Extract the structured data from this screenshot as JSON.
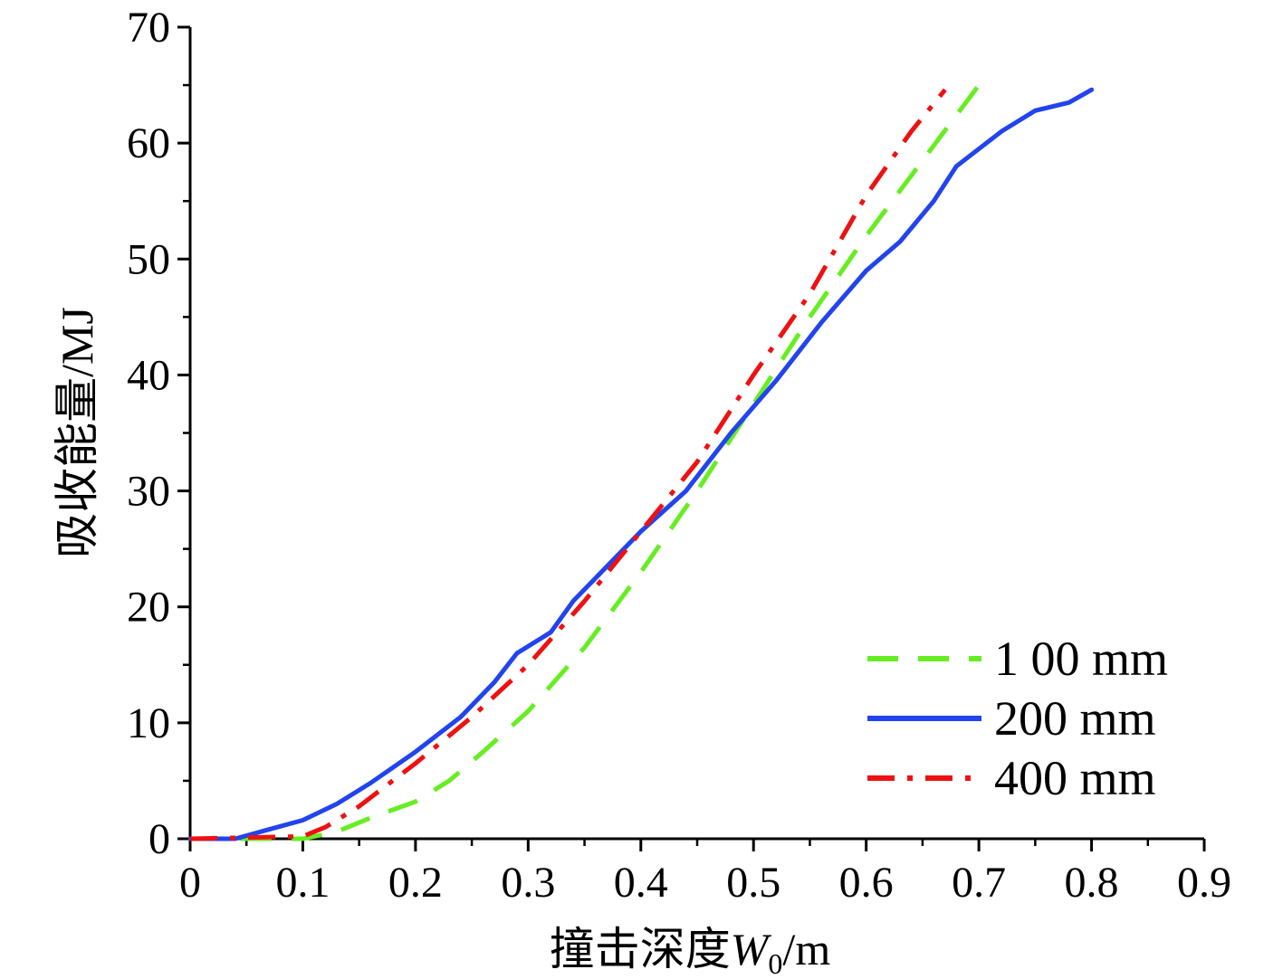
{
  "chart_data": {
    "type": "line",
    "title": "",
    "xlabel_main": "撞击深度",
    "xlabel_var": "W",
    "xlabel_sub": "0",
    "xlabel_unit": "/m",
    "ylabel": "吸收能量/MJ",
    "xlim": [
      0,
      0.9
    ],
    "ylim": [
      0,
      70
    ],
    "x_ticks": [
      "0",
      "0.1",
      "0.2",
      "0.3",
      "0.4",
      "0.5",
      "0.6",
      "0.7",
      "0.8",
      "0.9"
    ],
    "y_ticks": [
      "0",
      "10",
      "20",
      "30",
      "40",
      "50",
      "60",
      "70"
    ],
    "legend_position": "bottom-right",
    "series": [
      {
        "name": "1 00 mm",
        "color": "#66ee22",
        "style": "dashed",
        "points": [
          [
            0,
            0
          ],
          [
            0.1,
            0
          ],
          [
            0.13,
            0.6
          ],
          [
            0.16,
            1.8
          ],
          [
            0.2,
            3.2
          ],
          [
            0.23,
            5
          ],
          [
            0.26,
            7.5
          ],
          [
            0.3,
            11
          ],
          [
            0.35,
            16.5
          ],
          [
            0.4,
            23
          ],
          [
            0.45,
            30
          ],
          [
            0.5,
            37.5
          ],
          [
            0.55,
            45
          ],
          [
            0.6,
            52
          ],
          [
            0.65,
            58.5
          ],
          [
            0.7,
            65
          ]
        ]
      },
      {
        "name": "200 mm",
        "color": "#2244ee",
        "style": "solid",
        "points": [
          [
            0,
            0
          ],
          [
            0.04,
            0
          ],
          [
            0.07,
            0.8
          ],
          [
            0.1,
            1.6
          ],
          [
            0.13,
            3
          ],
          [
            0.16,
            4.8
          ],
          [
            0.2,
            7.5
          ],
          [
            0.24,
            10.5
          ],
          [
            0.27,
            13.5
          ],
          [
            0.29,
            16
          ],
          [
            0.32,
            17.8
          ],
          [
            0.34,
            20.5
          ],
          [
            0.37,
            23.5
          ],
          [
            0.4,
            26.5
          ],
          [
            0.44,
            30
          ],
          [
            0.48,
            35
          ],
          [
            0.52,
            39.5
          ],
          [
            0.56,
            44.5
          ],
          [
            0.6,
            49
          ],
          [
            0.63,
            51.5
          ],
          [
            0.66,
            55
          ],
          [
            0.68,
            58
          ],
          [
            0.72,
            61
          ],
          [
            0.75,
            62.8
          ],
          [
            0.78,
            63.5
          ],
          [
            0.8,
            64.6
          ]
        ]
      },
      {
        "name": "400 mm",
        "color": "#ee1111",
        "style": "dashdot",
        "points": [
          [
            0,
            0
          ],
          [
            0.1,
            0.2
          ],
          [
            0.12,
            1
          ],
          [
            0.15,
            2.8
          ],
          [
            0.2,
            6.5
          ],
          [
            0.25,
            10.5
          ],
          [
            0.3,
            15
          ],
          [
            0.35,
            20.5
          ],
          [
            0.4,
            26.5
          ],
          [
            0.45,
            32.5
          ],
          [
            0.5,
            40
          ],
          [
            0.55,
            47
          ],
          [
            0.6,
            55.5
          ],
          [
            0.64,
            61
          ],
          [
            0.67,
            64.6
          ]
        ]
      }
    ]
  }
}
